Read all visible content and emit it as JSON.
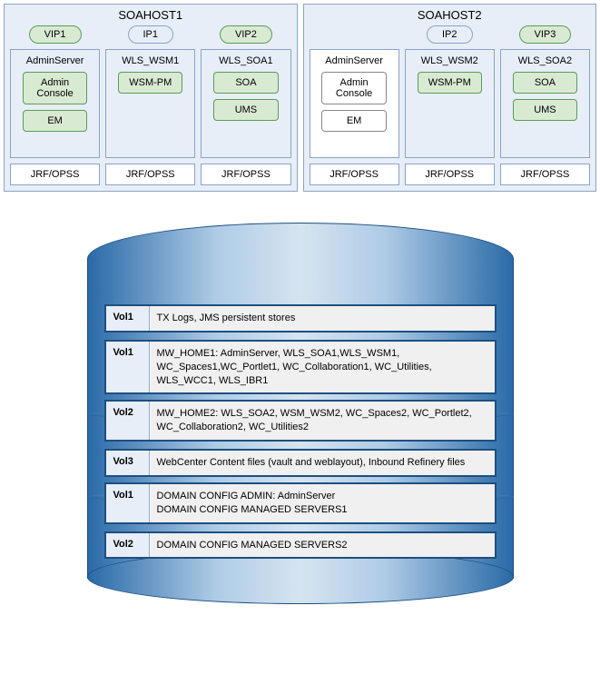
{
  "hosts": [
    {
      "title": "SOAHOST1",
      "servers": [
        {
          "pill": "VIP1",
          "pill_type": "vip",
          "name": "AdminServer",
          "box_style": "blue",
          "components": [
            {
              "label": "Admin Console",
              "style": "green"
            },
            {
              "label": "EM",
              "style": "green"
            }
          ],
          "jrf": "JRF/OPSS"
        },
        {
          "pill": "IP1",
          "pill_type": "ip",
          "name": "WLS_WSM1",
          "box_style": "blue",
          "components": [
            {
              "label": "WSM-PM",
              "style": "green"
            }
          ],
          "jrf": "JRF/OPSS"
        },
        {
          "pill": "VIP2",
          "pill_type": "vip",
          "name": "WLS_SOA1",
          "box_style": "blue",
          "components": [
            {
              "label": "SOA",
              "style": "green"
            },
            {
              "label": "UMS",
              "style": "green"
            }
          ],
          "jrf": "JRF/OPSS"
        }
      ]
    },
    {
      "title": "SOAHOST2",
      "servers": [
        {
          "pill": "",
          "pill_type": "none",
          "name": "AdminServer",
          "box_style": "white",
          "components": [
            {
              "label": "Admin Console",
              "style": "white"
            },
            {
              "label": "EM",
              "style": "white"
            }
          ],
          "jrf": "JRF/OPSS"
        },
        {
          "pill": "IP2",
          "pill_type": "ip",
          "name": "WLS_WSM2",
          "box_style": "blue",
          "components": [
            {
              "label": "WSM-PM",
              "style": "green"
            }
          ],
          "jrf": "JRF/OPSS"
        },
        {
          "pill": "VIP3",
          "pill_type": "vip",
          "name": "WLS_SOA2",
          "box_style": "blue",
          "components": [
            {
              "label": "SOA",
              "style": "green"
            },
            {
              "label": "UMS",
              "style": "green"
            }
          ],
          "jrf": "JRF/OPSS"
        }
      ]
    }
  ],
  "storage": {
    "sections": [
      {
        "volumes": [
          {
            "label": "Vol1",
            "text": "TX Logs, JMS persistent stores"
          },
          {
            "label": "Vol1",
            "text": "MW_HOME1: AdminServer, WLS_SOA1,WLS_WSM1, WC_Spaces1,WC_Portlet1, WC_Collaboration1, WC_Utilities, WLS_WCC1, WLS_IBR1"
          }
        ]
      },
      {
        "volumes": [
          {
            "label": "Vol2",
            "text": "MW_HOME2: WLS_SOA2, WSM_WSM2, WC_Spaces2, WC_Portlet2, WC_Collaboration2, WC_Utilities2"
          },
          {
            "label": "Vol3",
            "text": "WebCenter Content files (vault and weblayout), Inbound Refinery files"
          }
        ]
      },
      {
        "volumes": [
          {
            "label": "Vol1",
            "text": "DOMAIN CONFIG ADMIN: AdminServer\nDOMAIN CONFIG MANAGED SERVERS1"
          },
          {
            "label": "Vol2",
            "text": "DOMAIN CONFIG MANAGED SERVERS2"
          }
        ]
      }
    ]
  },
  "colors": {
    "host_bg": "#e7eef7",
    "host_border": "#8aa4c8",
    "green_bg": "#d9ead3",
    "green_border": "#5b9b5b",
    "cyl_dark": "#2a6aa8",
    "cyl_light": "#d6e4f0",
    "vol_label_bg": "#e7eef7",
    "vol_content_bg": "#f0f0f0"
  }
}
